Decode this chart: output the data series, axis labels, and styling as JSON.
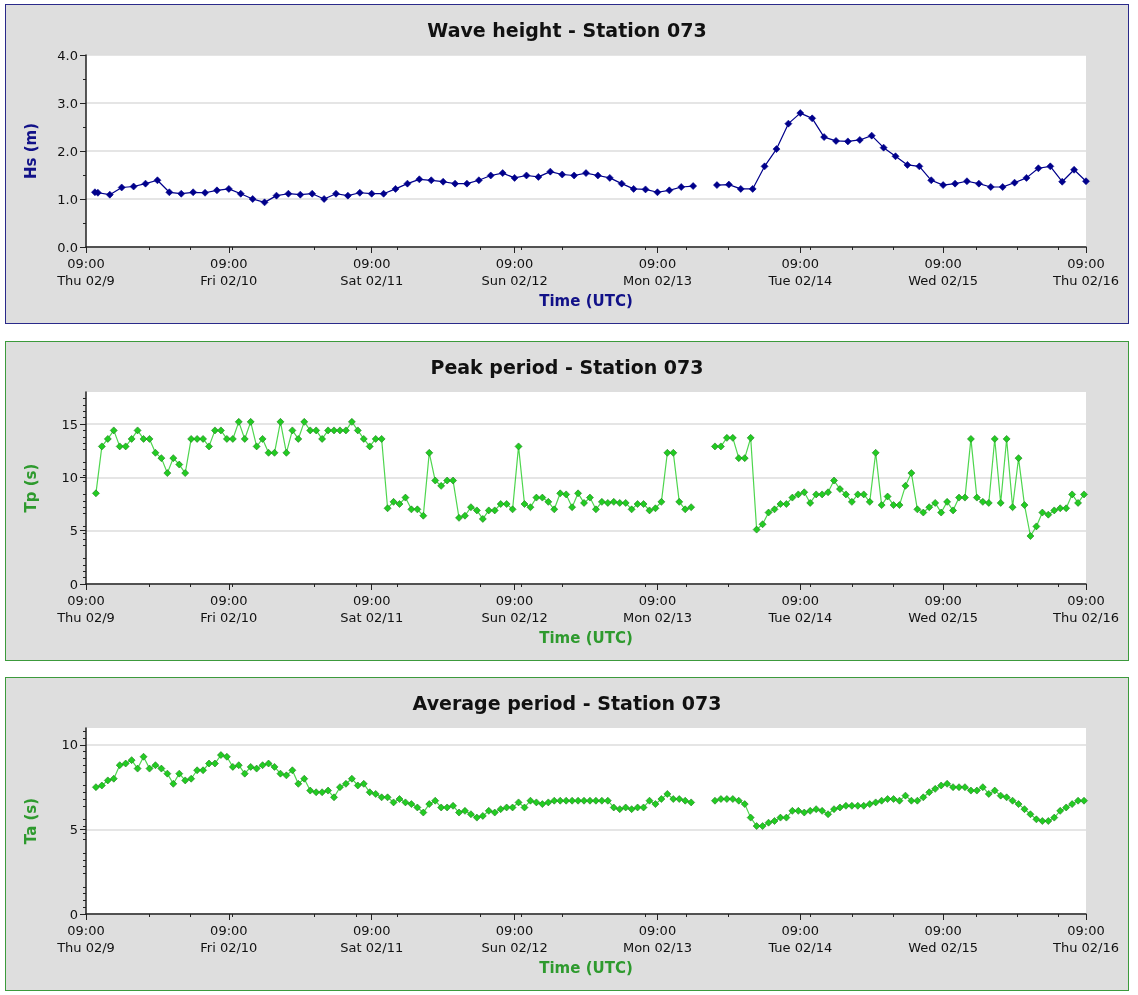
{
  "chart_data": [
    {
      "type": "line",
      "title": "Wave height - Station 073",
      "xlabel": "Time (UTC)",
      "ylabel": "Hs (m)",
      "xlim": [
        "--02-09T09:00",
        "--02-16T09:00"
      ],
      "xticks": [
        {
          "value": "--02-09T09:00",
          "label": "09:00\nThu 02/9"
        },
        {
          "value": "--02-10T09:00",
          "label": "09:00\nFri 02/10"
        },
        {
          "value": "--02-11T09:00",
          "label": "09:00\nSat 02/11"
        },
        {
          "value": "--02-12T09:00",
          "label": "09:00\nSun 02/12"
        },
        {
          "value": "--02-13T09:00",
          "label": "09:00\nMon 02/13"
        },
        {
          "value": "--02-14T09:00",
          "label": "09:00\nTue 02/14"
        },
        {
          "value": "--02-15T09:00",
          "label": "09:00\nWed 02/15"
        },
        {
          "value": "--02-16T09:00",
          "label": "09:00\nThu 02/16"
        }
      ],
      "ylim": [
        0,
        4
      ],
      "yticks": [
        {
          "value": 0,
          "label": "0.0"
        },
        {
          "value": 1,
          "label": "1.0"
        },
        {
          "value": 2,
          "label": "2.0"
        },
        {
          "value": 3,
          "label": "3.0"
        },
        {
          "value": 4,
          "label": "4.0"
        }
      ],
      "grid": "y",
      "marker": "diamond",
      "line_style": "solid",
      "series": [
        {
          "color": "#00008b",
          "x": [
            "--02-09T10:30",
            "--02-09T11:00",
            "--02-09T13:00",
            "--02-09T15:00",
            "--02-09T17:00",
            "--02-09T19:00",
            "--02-09T21:00",
            "--02-09T23:00",
            "--02-10T01:00",
            "--02-10T03:00",
            "--02-10T05:00",
            "--02-10T07:00",
            "--02-10T09:00",
            "--02-10T11:00",
            "--02-10T13:00",
            "--02-10T15:00",
            "--02-10T17:00",
            "--02-10T19:00",
            "--02-10T21:00",
            "--02-10T23:00",
            "--02-11T01:00",
            "--02-11T03:00",
            "--02-11T05:00",
            "--02-11T07:00",
            "--02-11T09:00",
            "--02-11T11:00",
            "--02-11T13:00",
            "--02-11T15:00",
            "--02-11T17:00",
            "--02-11T19:00",
            "--02-11T21:00",
            "--02-11T23:00",
            "--02-12T01:00",
            "--02-12T03:00",
            "--02-12T05:00",
            "--02-12T07:00",
            "--02-12T09:00",
            "--02-12T11:00",
            "--02-12T13:00",
            "--02-12T15:00",
            "--02-12T17:00",
            "--02-12T19:00",
            "--02-12T21:00",
            "--02-12T23:00",
            "--02-13T01:00",
            "--02-13T03:00",
            "--02-13T05:00",
            "--02-13T07:00",
            "--02-13T09:00",
            "--02-13T11:00",
            "--02-13T13:00",
            "--02-13T15:00",
            "--02-13T17:00",
            "--02-13T19:00",
            "--02-13T21:00",
            "--02-13T23:00",
            "--02-14T01:00",
            "--02-14T03:00",
            "--02-14T05:00",
            "--02-14T07:00",
            "--02-14T09:00",
            "--02-14T11:00",
            "--02-14T13:00",
            "--02-14T15:00",
            "--02-14T17:00",
            "--02-14T19:00",
            "--02-14T21:00",
            "--02-14T23:00",
            "--02-15T01:00",
            "--02-15T03:00",
            "--02-15T05:00",
            "--02-15T07:00",
            "--02-15T09:00",
            "--02-15T11:00",
            "--02-15T13:00",
            "--02-15T15:00",
            "--02-15T17:00",
            "--02-15T19:00",
            "--02-15T21:00",
            "--02-15T23:00",
            "--02-16T01:00",
            "--02-16T03:00",
            "--02-16T05:00",
            "--02-16T07:00",
            "--02-16T09:00"
          ],
          "values": [
            1.14,
            1.13,
            1.09,
            1.24,
            1.26,
            1.32,
            1.39,
            1.14,
            1.11,
            1.14,
            1.13,
            1.18,
            1.21,
            1.11,
            1.0,
            0.93,
            1.07,
            1.11,
            1.09,
            1.11,
            1.0,
            1.11,
            1.07,
            1.13,
            1.11,
            1.11,
            1.21,
            1.32,
            1.41,
            1.39,
            1.36,
            1.32,
            1.32,
            1.39,
            1.49,
            1.54,
            1.44,
            1.49,
            1.46,
            1.57,
            1.51,
            1.49,
            1.54,
            1.49,
            1.44,
            1.32,
            1.21,
            1.2,
            1.14,
            1.18,
            1.25,
            1.27,
            null,
            1.29,
            1.3,
            1.21,
            1.21,
            1.68,
            2.04,
            2.57,
            2.79,
            2.68,
            2.29,
            2.21,
            2.2,
            2.23,
            2.32,
            2.07,
            1.89,
            1.71,
            1.68,
            1.39,
            1.29,
            1.32,
            1.37,
            1.32,
            1.25,
            1.25,
            1.34,
            1.44,
            1.64,
            1.68,
            1.36,
            1.61,
            1.37
          ]
        }
      ]
    },
    {
      "type": "line",
      "title": "Peak period - Station 073",
      "xlabel": "Time (UTC)",
      "ylabel": "Tp (s)",
      "xlim": [
        "--02-09T09:00",
        "--02-16T09:00"
      ],
      "xticks": [
        {
          "value": "--02-09T09:00",
          "label": "09:00\nThu 02/9"
        },
        {
          "value": "--02-10T09:00",
          "label": "09:00\nFri 02/10"
        },
        {
          "value": "--02-11T09:00",
          "label": "09:00\nSat 02/11"
        },
        {
          "value": "--02-12T09:00",
          "label": "09:00\nSun 02/12"
        },
        {
          "value": "--02-13T09:00",
          "label": "09:00\nMon 02/13"
        },
        {
          "value": "--02-14T09:00",
          "label": "09:00\nTue 02/14"
        },
        {
          "value": "--02-15T09:00",
          "label": "09:00\nWed 02/15"
        },
        {
          "value": "--02-16T09:00",
          "label": "09:00\nThu 02/16"
        }
      ],
      "ylim": [
        0,
        18
      ],
      "yticks": [
        0,
        5,
        10,
        15
      ],
      "grid": "y",
      "marker": "diamond",
      "line_style": "solid",
      "series": [
        {
          "color": "#22cc22",
          "x": [
            "--02-09T10:40",
            "--02-09T11:40",
            "--02-09T12:40",
            "--02-09T13:40",
            "--02-09T14:40",
            "--02-09T15:40",
            "--02-09T16:40",
            "--02-09T17:40",
            "--02-09T18:40",
            "--02-09T19:40",
            "--02-09T20:40",
            "--02-09T21:40",
            "--02-09T22:40",
            "--02-09T23:40",
            "--02-10T00:40",
            "--02-10T01:40",
            "--02-10T02:40",
            "--02-10T03:40",
            "--02-10T04:40",
            "--02-10T05:40",
            "--02-10T06:40",
            "--02-10T07:40",
            "--02-10T08:40",
            "--02-10T09:40",
            "--02-10T10:40",
            "--02-10T11:40",
            "--02-10T12:40",
            "--02-10T13:40",
            "--02-10T14:40",
            "--02-10T15:40",
            "--02-10T16:40",
            "--02-10T17:40",
            "--02-10T18:40",
            "--02-10T19:40",
            "--02-10T20:40",
            "--02-10T21:40",
            "--02-10T22:40",
            "--02-10T23:40",
            "--02-11T00:40",
            "--02-11T01:40",
            "--02-11T02:40",
            "--02-11T03:40",
            "--02-11T04:40",
            "--02-11T05:40",
            "--02-11T06:40",
            "--02-11T07:40",
            "--02-11T08:40",
            "--02-11T09:40",
            "--02-11T10:40",
            "--02-11T11:40",
            "--02-11T12:40",
            "--02-11T13:40",
            "--02-11T14:40",
            "--02-11T15:40",
            "--02-11T16:40",
            "--02-11T17:40",
            "--02-11T18:40",
            "--02-11T19:40",
            "--02-11T20:40",
            "--02-11T21:40",
            "--02-11T22:40",
            "--02-11T23:40",
            "--02-12T00:40",
            "--02-12T01:40",
            "--02-12T02:40",
            "--02-12T03:40",
            "--02-12T04:40",
            "--02-12T05:40",
            "--02-12T06:40",
            "--02-12T07:40",
            "--02-12T08:40",
            "--02-12T09:40",
            "--02-12T10:40",
            "--02-12T11:40",
            "--02-12T12:40",
            "--02-12T13:40",
            "--02-12T14:40",
            "--02-12T15:40",
            "--02-12T16:40",
            "--02-12T17:40",
            "--02-12T18:40",
            "--02-12T19:40",
            "--02-12T20:40",
            "--02-12T21:40",
            "--02-12T22:40",
            "--02-12T23:40",
            "--02-13T00:40",
            "--02-13T01:40",
            "--02-13T02:40",
            "--02-13T03:40",
            "--02-13T04:40",
            "--02-13T05:40",
            "--02-13T06:40",
            "--02-13T07:40",
            "--02-13T08:40",
            "--02-13T09:40",
            "--02-13T10:40",
            "--02-13T11:40",
            "--02-13T12:40",
            "--02-13T13:40",
            "--02-13T14:40",
            "--02-13T16:40",
            "--02-13T18:40",
            "--02-13T19:40",
            "--02-13T20:40",
            "--02-13T21:40",
            "--02-13T22:40",
            "--02-13T23:40",
            "--02-14T00:40",
            "--02-14T01:40",
            "--02-14T02:40",
            "--02-14T03:40",
            "--02-14T04:40",
            "--02-14T05:40",
            "--02-14T06:40",
            "--02-14T07:40",
            "--02-14T08:40",
            "--02-14T09:40",
            "--02-14T10:40",
            "--02-14T11:40",
            "--02-14T12:40",
            "--02-14T13:40",
            "--02-14T14:40",
            "--02-14T15:40",
            "--02-14T16:40",
            "--02-14T17:40",
            "--02-14T18:40",
            "--02-14T19:40",
            "--02-14T20:40",
            "--02-14T21:40",
            "--02-14T22:40",
            "--02-14T23:40",
            "--02-15T00:40",
            "--02-15T01:40",
            "--02-15T02:40",
            "--02-15T03:40",
            "--02-15T04:40",
            "--02-15T05:40",
            "--02-15T06:40",
            "--02-15T07:40",
            "--02-15T08:40",
            "--02-15T09:40",
            "--02-15T10:40",
            "--02-15T11:40",
            "--02-15T12:40",
            "--02-15T13:40",
            "--02-15T14:40",
            "--02-15T15:40",
            "--02-15T16:40",
            "--02-15T17:40",
            "--02-15T18:40",
            "--02-15T19:40",
            "--02-15T20:40",
            "--02-15T21:40",
            "--02-15T22:40",
            "--02-15T23:40",
            "--02-16T00:40",
            "--02-16T01:40",
            "--02-16T02:40",
            "--02-16T03:40",
            "--02-16T04:40",
            "--02-16T05:40",
            "--02-16T06:40",
            "--02-16T07:40",
            "--02-16T08:40"
          ],
          "values": [
            8.5,
            12.9,
            13.6,
            14.4,
            12.9,
            12.9,
            13.6,
            14.4,
            13.6,
            13.6,
            12.3,
            11.8,
            10.4,
            11.8,
            11.2,
            10.4,
            13.6,
            13.6,
            13.6,
            12.9,
            14.4,
            14.4,
            13.6,
            13.6,
            15.2,
            13.6,
            15.2,
            12.9,
            13.6,
            12.3,
            12.3,
            15.2,
            12.3,
            14.4,
            13.6,
            15.2,
            14.4,
            14.4,
            13.6,
            14.4,
            14.4,
            14.4,
            14.4,
            15.2,
            14.4,
            13.6,
            12.9,
            13.6,
            13.6,
            7.1,
            7.7,
            7.5,
            8.1,
            7.0,
            7.0,
            6.4,
            12.3,
            9.7,
            9.2,
            9.7,
            9.7,
            6.2,
            6.4,
            7.2,
            6.9,
            6.1,
            6.9,
            6.9,
            7.5,
            7.5,
            7.0,
            12.9,
            7.5,
            7.2,
            8.1,
            8.1,
            7.7,
            7.0,
            8.5,
            8.4,
            7.2,
            8.5,
            7.6,
            8.1,
            7.0,
            7.7,
            7.6,
            7.7,
            7.6,
            7.6,
            7.0,
            7.5,
            7.5,
            6.9,
            7.1,
            7.7,
            12.3,
            12.3,
            7.7,
            7.0,
            7.2,
            null,
            12.9,
            12.9,
            13.7,
            13.7,
            11.8,
            11.8,
            13.7,
            5.1,
            5.6,
            6.7,
            7.0,
            7.5,
            7.5,
            8.1,
            8.4,
            8.6,
            7.6,
            8.4,
            8.4,
            8.6,
            9.7,
            8.9,
            8.4,
            7.7,
            8.4,
            8.4,
            7.7,
            12.3,
            7.4,
            8.2,
            7.4,
            7.4,
            9.2,
            10.4,
            7.0,
            6.7,
            7.2,
            7.6,
            6.7,
            7.7,
            6.9,
            8.1,
            8.1,
            13.6,
            8.1,
            7.7,
            7.6,
            13.6,
            7.6,
            13.6,
            7.2,
            11.8,
            7.4,
            4.5,
            5.4,
            6.7,
            6.5,
            6.9,
            7.1,
            7.1,
            8.4,
            7.6,
            8.4
          ]
        }
      ]
    },
    {
      "type": "line",
      "title": "Average period - Station 073",
      "xlabel": "Time (UTC)",
      "ylabel": "Ta (s)",
      "xlim": [
        "--02-09T09:00",
        "--02-16T09:00"
      ],
      "xticks": [
        {
          "value": "--02-09T09:00",
          "label": "09:00\nThu 02/9"
        },
        {
          "value": "--02-10T09:00",
          "label": "09:00\nFri 02/10"
        },
        {
          "value": "--02-11T09:00",
          "label": "09:00\nSat 02/11"
        },
        {
          "value": "--02-12T09:00",
          "label": "09:00\nSun 02/12"
        },
        {
          "value": "--02-13T09:00",
          "label": "09:00\nMon 02/13"
        },
        {
          "value": "--02-14T09:00",
          "label": "09:00\nTue 02/14"
        },
        {
          "value": "--02-15T09:00",
          "label": "09:00\nWed 02/15"
        },
        {
          "value": "--02-16T09:00",
          "label": "09:00\nThu 02/16"
        }
      ],
      "ylim": [
        0,
        11
      ],
      "yticks": [
        0,
        5,
        10
      ],
      "grid": "y",
      "marker": "diamond",
      "line_style": "solid",
      "series": [
        {
          "color": "#22cc22",
          "x": [
            "--02-09T10:40",
            "--02-09T11:40",
            "--02-09T12:40",
            "--02-09T13:40",
            "--02-09T14:40",
            "--02-09T15:40",
            "--02-09T16:40",
            "--02-09T17:40",
            "--02-09T18:40",
            "--02-09T19:40",
            "--02-09T20:40",
            "--02-09T21:40",
            "--02-09T22:40",
            "--02-09T23:40",
            "--02-10T00:40",
            "--02-10T01:40",
            "--02-10T02:40",
            "--02-10T03:40",
            "--02-10T04:40",
            "--02-10T05:40",
            "--02-10T06:40",
            "--02-10T07:40",
            "--02-10T08:40",
            "--02-10T09:40",
            "--02-10T10:40",
            "--02-10T11:40",
            "--02-10T12:40",
            "--02-10T13:40",
            "--02-10T14:40",
            "--02-10T15:40",
            "--02-10T16:40",
            "--02-10T17:40",
            "--02-10T18:40",
            "--02-10T19:40",
            "--02-10T20:40",
            "--02-10T21:40",
            "--02-10T22:40",
            "--02-10T23:40",
            "--02-11T00:40",
            "--02-11T01:40",
            "--02-11T02:40",
            "--02-11T03:40",
            "--02-11T04:40",
            "--02-11T05:40",
            "--02-11T06:40",
            "--02-11T07:40",
            "--02-11T08:40",
            "--02-11T09:40",
            "--02-11T10:40",
            "--02-11T11:40",
            "--02-11T12:40",
            "--02-11T13:40",
            "--02-11T14:40",
            "--02-11T15:40",
            "--02-11T16:40",
            "--02-11T17:40",
            "--02-11T18:40",
            "--02-11T19:40",
            "--02-11T20:40",
            "--02-11T21:40",
            "--02-11T22:40",
            "--02-11T23:40",
            "--02-12T00:40",
            "--02-12T01:40",
            "--02-12T02:40",
            "--02-12T03:40",
            "--02-12T04:40",
            "--02-12T05:40",
            "--02-12T06:40",
            "--02-12T07:40",
            "--02-12T08:40",
            "--02-12T09:40",
            "--02-12T10:40",
            "--02-12T11:40",
            "--02-12T12:40",
            "--02-12T13:40",
            "--02-12T14:40",
            "--02-12T15:40",
            "--02-12T16:40",
            "--02-12T17:40",
            "--02-12T18:40",
            "--02-12T19:40",
            "--02-12T20:40",
            "--02-12T21:40",
            "--02-12T22:40",
            "--02-12T23:40",
            "--02-13T00:40",
            "--02-13T01:40",
            "--02-13T02:40",
            "--02-13T03:40",
            "--02-13T04:40",
            "--02-13T05:40",
            "--02-13T06:40",
            "--02-13T07:40",
            "--02-13T08:40",
            "--02-13T09:40",
            "--02-13T10:40",
            "--02-13T11:40",
            "--02-13T12:40",
            "--02-13T13:40",
            "--02-13T14:40",
            "--02-13T16:40",
            "--02-13T18:40",
            "--02-13T19:40",
            "--02-13T20:40",
            "--02-13T21:40",
            "--02-13T22:40",
            "--02-13T23:40",
            "--02-14T00:40",
            "--02-14T01:40",
            "--02-14T02:40",
            "--02-14T03:40",
            "--02-14T04:40",
            "--02-14T05:40",
            "--02-14T06:40",
            "--02-14T07:40",
            "--02-14T08:40",
            "--02-14T09:40",
            "--02-14T10:40",
            "--02-14T11:40",
            "--02-14T12:40",
            "--02-14T13:40",
            "--02-14T14:40",
            "--02-14T15:40",
            "--02-14T16:40",
            "--02-14T17:40",
            "--02-14T18:40",
            "--02-14T19:40",
            "--02-14T20:40",
            "--02-14T21:40",
            "--02-14T22:40",
            "--02-14T23:40",
            "--02-15T00:40",
            "--02-15T01:40",
            "--02-15T02:40",
            "--02-15T03:40",
            "--02-15T04:40",
            "--02-15T05:40",
            "--02-15T06:40",
            "--02-15T07:40",
            "--02-15T08:40",
            "--02-15T09:40",
            "--02-15T10:40",
            "--02-15T11:40",
            "--02-15T12:40",
            "--02-15T13:40",
            "--02-15T14:40",
            "--02-15T15:40",
            "--02-15T16:40",
            "--02-15T17:40",
            "--02-15T18:40",
            "--02-15T19:40",
            "--02-15T20:40",
            "--02-15T21:40",
            "--02-15T22:40",
            "--02-15T23:40",
            "--02-16T00:40",
            "--02-16T01:40",
            "--02-16T02:40",
            "--02-16T03:40",
            "--02-16T04:40",
            "--02-16T05:40",
            "--02-16T06:40",
            "--02-16T07:40",
            "--02-16T08:40"
          ],
          "values": [
            7.5,
            7.6,
            7.9,
            8.0,
            8.8,
            8.9,
            9.1,
            8.6,
            9.3,
            8.6,
            8.8,
            8.6,
            8.3,
            7.7,
            8.3,
            7.9,
            8.0,
            8.5,
            8.5,
            8.9,
            8.9,
            9.4,
            9.3,
            8.7,
            8.8,
            8.3,
            8.7,
            8.6,
            8.8,
            8.9,
            8.7,
            8.3,
            8.2,
            8.5,
            7.7,
            8.0,
            7.3,
            7.2,
            7.2,
            7.3,
            6.9,
            7.5,
            7.7,
            8.0,
            7.6,
            7.7,
            7.2,
            7.1,
            6.9,
            6.9,
            6.6,
            6.8,
            6.6,
            6.5,
            6.3,
            6.0,
            6.5,
            6.7,
            6.3,
            6.3,
            6.4,
            6.0,
            6.1,
            5.9,
            5.7,
            5.8,
            6.1,
            6.0,
            6.2,
            6.3,
            6.3,
            6.6,
            6.3,
            6.7,
            6.6,
            6.5,
            6.6,
            6.7,
            6.7,
            6.7,
            6.7,
            6.7,
            6.7,
            6.7,
            6.7,
            6.7,
            6.7,
            6.3,
            6.2,
            6.3,
            6.2,
            6.3,
            6.3,
            6.7,
            6.5,
            6.8,
            7.1,
            6.8,
            6.8,
            6.7,
            6.6,
            null,
            6.7,
            6.8,
            6.8,
            6.8,
            6.7,
            6.5,
            5.7,
            5.2,
            5.2,
            5.4,
            5.5,
            5.7,
            5.7,
            6.1,
            6.1,
            6.0,
            6.1,
            6.2,
            6.1,
            5.9,
            6.2,
            6.3,
            6.4,
            6.4,
            6.4,
            6.4,
            6.5,
            6.6,
            6.7,
            6.8,
            6.8,
            6.7,
            7.0,
            6.7,
            6.7,
            6.9,
            7.2,
            7.4,
            7.6,
            7.7,
            7.5,
            7.5,
            7.5,
            7.3,
            7.3,
            7.5,
            7.1,
            7.3,
            7.0,
            6.9,
            6.7,
            6.5,
            6.2,
            5.9,
            5.6,
            5.5,
            5.5,
            5.7,
            6.1,
            6.3,
            6.5,
            6.7,
            6.7
          ]
        }
      ]
    }
  ]
}
